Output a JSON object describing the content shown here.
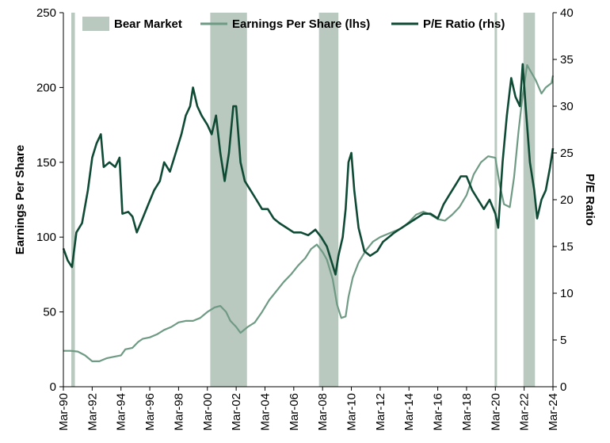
{
  "chart_data": {
    "type": "line",
    "legend_position": "top",
    "legend": [
      {
        "label": "Bear Market",
        "kind": "area",
        "color": "#b9c9bf"
      },
      {
        "label": "Earnings Per Share (lhs)",
        "kind": "line",
        "color": "#6f9a84"
      },
      {
        "label": "P/E Ratio (rhs)",
        "kind": "line",
        "color": "#0f4a35"
      }
    ],
    "y_left": {
      "label": "Earnings Per Share",
      "ylim": [
        0,
        250
      ],
      "ticks": [
        0,
        50,
        100,
        150,
        200,
        250
      ]
    },
    "y_right": {
      "label": "P/E Ratio",
      "ylim": [
        0,
        40
      ],
      "ticks": [
        0,
        5,
        10,
        15,
        20,
        25,
        30,
        35,
        40
      ]
    },
    "x_range": [
      1990.0,
      2024.0
    ],
    "x_ticks": [
      {
        "t": 1990,
        "label": "Mar-90"
      },
      {
        "t": 1992,
        "label": "Mar-92"
      },
      {
        "t": 1994,
        "label": "Mar-94"
      },
      {
        "t": 1996,
        "label": "Mar-96"
      },
      {
        "t": 1998,
        "label": "Mar-98"
      },
      {
        "t": 2000,
        "label": "Mar-00"
      },
      {
        "t": 2002,
        "label": "Mar-02"
      },
      {
        "t": 2004,
        "label": "Mar-04"
      },
      {
        "t": 2006,
        "label": "Mar-06"
      },
      {
        "t": 2008,
        "label": "Mar-08"
      },
      {
        "t": 2010,
        "label": "Mar-10"
      },
      {
        "t": 2012,
        "label": "Mar-12"
      },
      {
        "t": 2014,
        "label": "Mar-14"
      },
      {
        "t": 2016,
        "label": "Mar-16"
      },
      {
        "t": 2018,
        "label": "Mar-18"
      },
      {
        "t": 2020,
        "label": "Mar-20"
      },
      {
        "t": 2022,
        "label": "Mar-22"
      },
      {
        "t": 2024,
        "label": "Mar-24"
      }
    ],
    "bear_markets": [
      {
        "start": 1990.55,
        "end": 1990.8
      },
      {
        "start": 2000.2,
        "end": 2002.75
      },
      {
        "start": 2007.75,
        "end": 2009.1
      },
      {
        "start": 2019.95,
        "end": 2020.1
      },
      {
        "start": 2021.95,
        "end": 2022.75
      }
    ],
    "series": [
      {
        "name": "Earnings Per Share (lhs)",
        "axis": "left",
        "color": "#6f9a84",
        "points": [
          [
            1990.0,
            24
          ],
          [
            1990.5,
            24
          ],
          [
            1991.0,
            23.5
          ],
          [
            1991.5,
            21
          ],
          [
            1992.0,
            17
          ],
          [
            1992.5,
            17
          ],
          [
            1993.0,
            19
          ],
          [
            1993.5,
            20
          ],
          [
            1994.0,
            21
          ],
          [
            1994.3,
            25
          ],
          [
            1994.8,
            26
          ],
          [
            1995.2,
            30
          ],
          [
            1995.5,
            32
          ],
          [
            1996.0,
            33
          ],
          [
            1996.5,
            35
          ],
          [
            1997.0,
            38
          ],
          [
            1997.5,
            40
          ],
          [
            1998.0,
            43
          ],
          [
            1998.5,
            44
          ],
          [
            1999.0,
            44
          ],
          [
            1999.5,
            46
          ],
          [
            2000.0,
            50
          ],
          [
            2000.5,
            53
          ],
          [
            2000.9,
            54
          ],
          [
            2001.3,
            50
          ],
          [
            2001.6,
            44
          ],
          [
            2002.0,
            40
          ],
          [
            2002.3,
            36
          ],
          [
            2002.8,
            40
          ],
          [
            2003.3,
            43
          ],
          [
            2003.8,
            50
          ],
          [
            2004.3,
            58
          ],
          [
            2004.8,
            64
          ],
          [
            2005.3,
            70
          ],
          [
            2005.8,
            75
          ],
          [
            2006.3,
            81
          ],
          [
            2006.8,
            86
          ],
          [
            2007.2,
            92
          ],
          [
            2007.6,
            95
          ],
          [
            2008.0,
            90
          ],
          [
            2008.3,
            85
          ],
          [
            2008.7,
            72
          ],
          [
            2009.0,
            55
          ],
          [
            2009.3,
            46
          ],
          [
            2009.6,
            47
          ],
          [
            2009.8,
            60
          ],
          [
            2010.1,
            73
          ],
          [
            2010.5,
            83
          ],
          [
            2011.0,
            91
          ],
          [
            2011.5,
            97
          ],
          [
            2012.0,
            100
          ],
          [
            2012.5,
            102
          ],
          [
            2013.0,
            104
          ],
          [
            2013.5,
            106
          ],
          [
            2014.0,
            110
          ],
          [
            2014.5,
            115
          ],
          [
            2015.0,
            117
          ],
          [
            2015.5,
            115
          ],
          [
            2016.0,
            112
          ],
          [
            2016.5,
            111
          ],
          [
            2017.0,
            115
          ],
          [
            2017.5,
            120
          ],
          [
            2018.0,
            128
          ],
          [
            2018.5,
            142
          ],
          [
            2019.0,
            150
          ],
          [
            2019.5,
            154
          ],
          [
            2020.0,
            153
          ],
          [
            2020.3,
            135
          ],
          [
            2020.6,
            122
          ],
          [
            2021.0,
            120
          ],
          [
            2021.3,
            140
          ],
          [
            2021.6,
            170
          ],
          [
            2021.9,
            195
          ],
          [
            2022.2,
            215
          ],
          [
            2022.5,
            210
          ],
          [
            2022.8,
            205
          ],
          [
            2023.2,
            196
          ],
          [
            2023.5,
            200
          ],
          [
            2023.9,
            203
          ],
          [
            2024.0,
            208
          ]
        ]
      },
      {
        "name": "P/E Ratio (rhs)",
        "axis": "right",
        "color": "#0f4a35",
        "points": [
          [
            1990.0,
            14.8
          ],
          [
            1990.3,
            13.5
          ],
          [
            1990.6,
            12.8
          ],
          [
            1990.9,
            16.5
          ],
          [
            1991.3,
            17.5
          ],
          [
            1991.7,
            21
          ],
          [
            1992.0,
            24.5
          ],
          [
            1992.3,
            26
          ],
          [
            1992.6,
            27
          ],
          [
            1992.8,
            23.5
          ],
          [
            1993.2,
            24
          ],
          [
            1993.6,
            23.5
          ],
          [
            1993.9,
            24.5
          ],
          [
            1994.1,
            18.5
          ],
          [
            1994.5,
            18.7
          ],
          [
            1994.8,
            18.2
          ],
          [
            1995.1,
            16.5
          ],
          [
            1995.5,
            18
          ],
          [
            1995.9,
            19.5
          ],
          [
            1996.3,
            21
          ],
          [
            1996.7,
            22
          ],
          [
            1997.0,
            24
          ],
          [
            1997.4,
            23
          ],
          [
            1997.8,
            25
          ],
          [
            1998.2,
            27
          ],
          [
            1998.5,
            29
          ],
          [
            1998.8,
            30
          ],
          [
            1999.0,
            32
          ],
          [
            1999.3,
            30
          ],
          [
            1999.6,
            29
          ],
          [
            2000.0,
            28
          ],
          [
            2000.3,
            27
          ],
          [
            2000.6,
            29
          ],
          [
            2000.9,
            25
          ],
          [
            2001.2,
            22
          ],
          [
            2001.5,
            25
          ],
          [
            2001.8,
            30
          ],
          [
            2002.0,
            30
          ],
          [
            2002.3,
            24
          ],
          [
            2002.6,
            22
          ],
          [
            2003.0,
            21
          ],
          [
            2003.4,
            20
          ],
          [
            2003.8,
            19
          ],
          [
            2004.2,
            19
          ],
          [
            2004.6,
            18
          ],
          [
            2005.0,
            17.5
          ],
          [
            2005.5,
            17
          ],
          [
            2006.0,
            16.5
          ],
          [
            2006.5,
            16.5
          ],
          [
            2007.0,
            16.2
          ],
          [
            2007.5,
            16.8
          ],
          [
            2007.9,
            16
          ],
          [
            2008.3,
            15
          ],
          [
            2008.7,
            13
          ],
          [
            2008.9,
            12
          ],
          [
            2009.1,
            14
          ],
          [
            2009.4,
            16
          ],
          [
            2009.6,
            19
          ],
          [
            2009.8,
            24
          ],
          [
            2010.0,
            25
          ],
          [
            2010.2,
            21
          ],
          [
            2010.5,
            17
          ],
          [
            2010.9,
            14.5
          ],
          [
            2011.3,
            14
          ],
          [
            2011.8,
            14.5
          ],
          [
            2012.2,
            15.5
          ],
          [
            2012.6,
            16
          ],
          [
            2013.0,
            16.5
          ],
          [
            2013.5,
            17
          ],
          [
            2014.0,
            17.5
          ],
          [
            2014.5,
            18
          ],
          [
            2015.0,
            18.5
          ],
          [
            2015.5,
            18.5
          ],
          [
            2016.0,
            18
          ],
          [
            2016.4,
            19.5
          ],
          [
            2016.8,
            20.5
          ],
          [
            2017.2,
            21.5
          ],
          [
            2017.6,
            22.5
          ],
          [
            2018.0,
            22.5
          ],
          [
            2018.4,
            21
          ],
          [
            2018.8,
            20
          ],
          [
            2019.2,
            19
          ],
          [
            2019.6,
            20
          ],
          [
            2020.0,
            18.5
          ],
          [
            2020.2,
            17
          ],
          [
            2020.5,
            24
          ],
          [
            2020.8,
            29
          ],
          [
            2021.1,
            33
          ],
          [
            2021.4,
            31
          ],
          [
            2021.7,
            30
          ],
          [
            2021.9,
            34.5
          ],
          [
            2022.1,
            30
          ],
          [
            2022.4,
            24
          ],
          [
            2022.7,
            21
          ],
          [
            2022.9,
            18
          ],
          [
            2023.2,
            20
          ],
          [
            2023.5,
            21
          ],
          [
            2023.8,
            23.5
          ],
          [
            2024.0,
            25.5
          ]
        ]
      }
    ]
  }
}
